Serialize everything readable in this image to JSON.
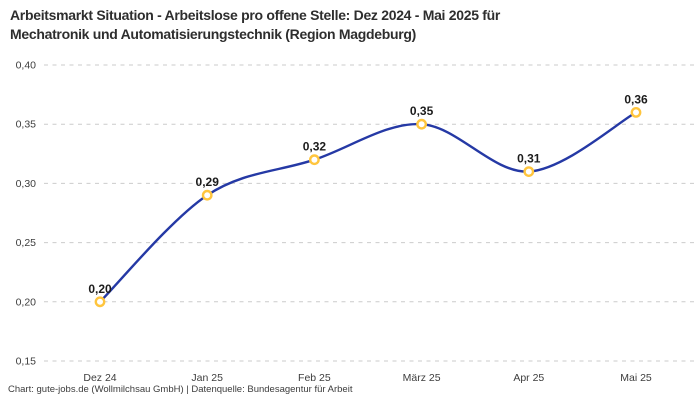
{
  "title": {
    "line1": "Arbeitsmarkt Situation - Arbeitslose pro offene Stelle: Dez 2024 - Mai 2025 für",
    "line2": "Mechatronik und Automatisierungstechnik (Region Magdeburg)"
  },
  "footer": "Chart: gute-jobs.de (Wollmilchsau GmbH) | Datenquelle: Bundesagentur für Arbeit",
  "colors": {
    "line": "#2539A5",
    "marker_stroke": "#FFC53D",
    "marker_fill": "#FFFFFF",
    "grid": "#CBCBCB",
    "title_text": "#2E2E2E",
    "axis_text": "#3D3D3D",
    "data_label_text": "#1C1C1C",
    "background": "#FFFFFF"
  },
  "chart_data": {
    "type": "line",
    "title": "Arbeitsmarkt Situation - Arbeitslose pro offene Stelle: Dez 2024 - Mai 2025 für Mechatronik und Automatisierungstechnik (Region Magdeburg)",
    "categories": [
      "Dez 24",
      "Jan 25",
      "Feb 25",
      "März 25",
      "Apr 25",
      "Mai 25"
    ],
    "values": [
      0.2,
      0.29,
      0.32,
      0.35,
      0.31,
      0.36
    ],
    "value_labels": [
      "0,20",
      "0,29",
      "0,32",
      "0,35",
      "0,31",
      "0,36"
    ],
    "y_ticks": [
      {
        "value": 0.15,
        "label": "0,15"
      },
      {
        "value": 0.2,
        "label": "0,20"
      },
      {
        "value": 0.25,
        "label": "0,25"
      },
      {
        "value": 0.3,
        "label": "0,30"
      },
      {
        "value": 0.35,
        "label": "0,35"
      },
      {
        "value": 0.4,
        "label": "0,40"
      }
    ],
    "xlabel": "",
    "ylabel": "",
    "ylim": [
      0.15,
      0.4
    ],
    "grid": "horizontal-dashed",
    "legend": "none",
    "line_style": "smooth-spline",
    "marker_style": "open-circle"
  }
}
